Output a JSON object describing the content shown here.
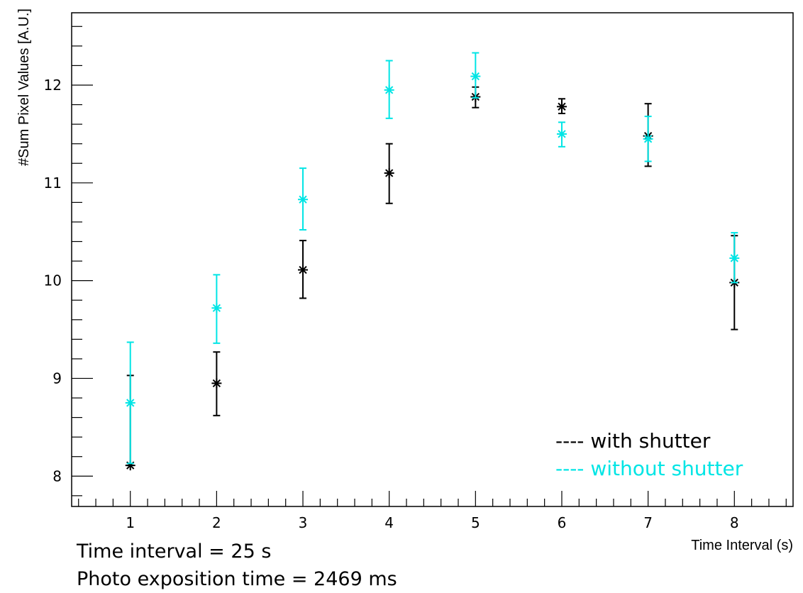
{
  "chart_data": {
    "type": "scatter",
    "title": "",
    "xlabel": "Time Interval (s)",
    "ylabel": "#Sum Pixel Values [A.U.]",
    "xlim": [
      0.32,
      8.68
    ],
    "ylim": [
      7.69,
      12.74
    ],
    "x_major_ticks": [
      1,
      2,
      3,
      4,
      5,
      6,
      7,
      8
    ],
    "x_tick_labels": [
      "1",
      "2",
      "3",
      "4",
      "5",
      "6",
      "7",
      "8"
    ],
    "y_major_ticks": [
      8,
      9,
      10,
      11,
      12
    ],
    "y_tick_labels": [
      "8",
      "9",
      "10",
      "11",
      "12"
    ],
    "grid": false,
    "legend_position": "bottom-right",
    "series": [
      {
        "name": "---- with shutter",
        "color": "#000000",
        "points": [
          {
            "x": 1,
            "y": 8.11,
            "err_low": 8.11,
            "err_high": 9.03
          },
          {
            "x": 2,
            "y": 8.95,
            "err_low": 8.62,
            "err_high": 9.27
          },
          {
            "x": 3,
            "y": 10.11,
            "err_low": 9.82,
            "err_high": 10.41
          },
          {
            "x": 4,
            "y": 11.1,
            "err_low": 10.79,
            "err_high": 11.4
          },
          {
            "x": 5,
            "y": 11.88,
            "err_low": 11.77,
            "err_high": 11.98
          },
          {
            "x": 6,
            "y": 11.78,
            "err_low": 11.71,
            "err_high": 11.86
          },
          {
            "x": 7,
            "y": 11.48,
            "err_low": 11.17,
            "err_high": 11.81
          },
          {
            "x": 8,
            "y": 9.98,
            "err_low": 9.5,
            "err_high": 10.46
          }
        ]
      },
      {
        "name": "---- without shutter",
        "color": "#00e5e5",
        "points": [
          {
            "x": 1,
            "y": 8.75,
            "err_low": 8.13,
            "err_high": 9.37
          },
          {
            "x": 2,
            "y": 9.72,
            "err_low": 9.36,
            "err_high": 10.06
          },
          {
            "x": 3,
            "y": 10.83,
            "err_low": 10.52,
            "err_high": 11.15
          },
          {
            "x": 4,
            "y": 11.95,
            "err_low": 11.66,
            "err_high": 12.25
          },
          {
            "x": 5,
            "y": 12.09,
            "err_low": 11.87,
            "err_high": 12.33
          },
          {
            "x": 6,
            "y": 11.5,
            "err_low": 11.37,
            "err_high": 11.62
          },
          {
            "x": 7,
            "y": 11.45,
            "err_low": 11.22,
            "err_high": 11.68
          },
          {
            "x": 8,
            "y": 10.23,
            "err_low": 9.98,
            "err_high": 10.49
          }
        ]
      }
    ],
    "annotations": [
      "Time interval = 25 s",
      "Photo exposition time = 2469 ms"
    ]
  }
}
